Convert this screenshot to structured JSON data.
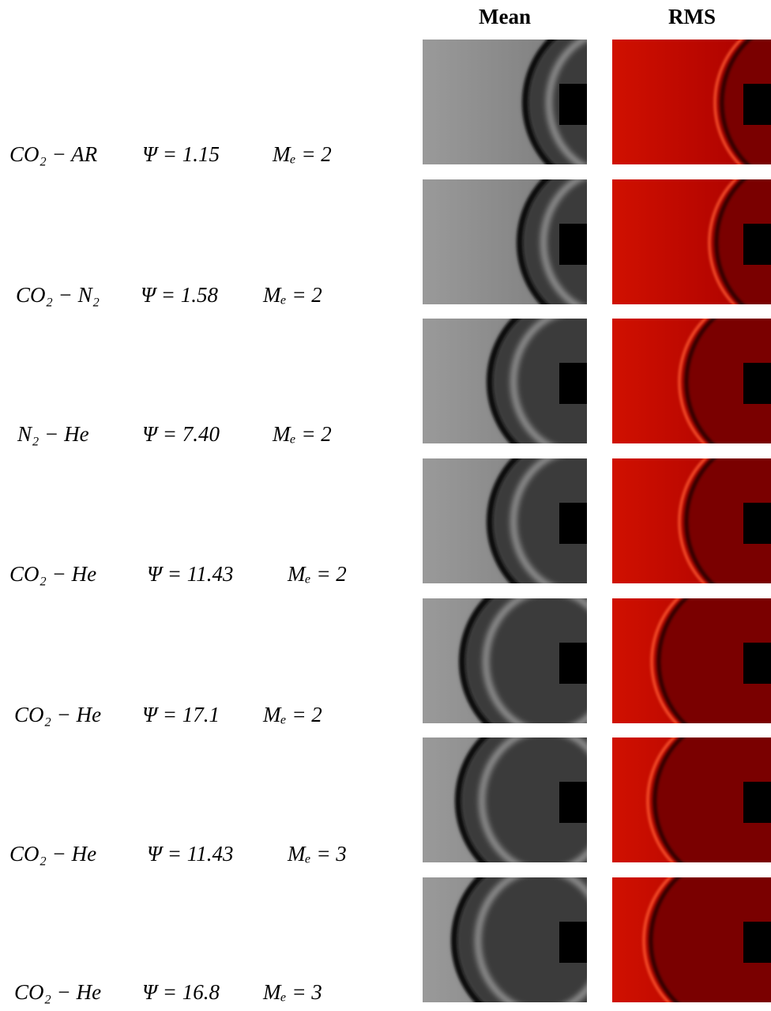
{
  "columns": [
    "Mean",
    "RMS"
  ],
  "rows": [
    {
      "gas": "CO₂ − AR",
      "psi": "Ψ = 1.15",
      "mach": "Mₑ = 2"
    },
    {
      "gas": "CO₂ − N₂",
      "psi": "Ψ = 1.58",
      "mach": "Mₑ = 2"
    },
    {
      "gas": "N₂ − He",
      "psi": "Ψ = 7.40",
      "mach": "Mₑ = 2"
    },
    {
      "gas": "CO₂ − He",
      "psi": "Ψ = 11.43",
      "mach": "Mₑ = 2"
    },
    {
      "gas": "CO₂ − He",
      "psi": "Ψ = 17.1",
      "mach": "Mₑ = 2"
    },
    {
      "gas": "CO₂ − He",
      "psi": "Ψ = 11.43",
      "mach": "Mₑ = 3"
    },
    {
      "gas": "CO₂ − He",
      "psi": "Ψ = 16.8",
      "mach": "Mₑ = 3"
    }
  ]
}
